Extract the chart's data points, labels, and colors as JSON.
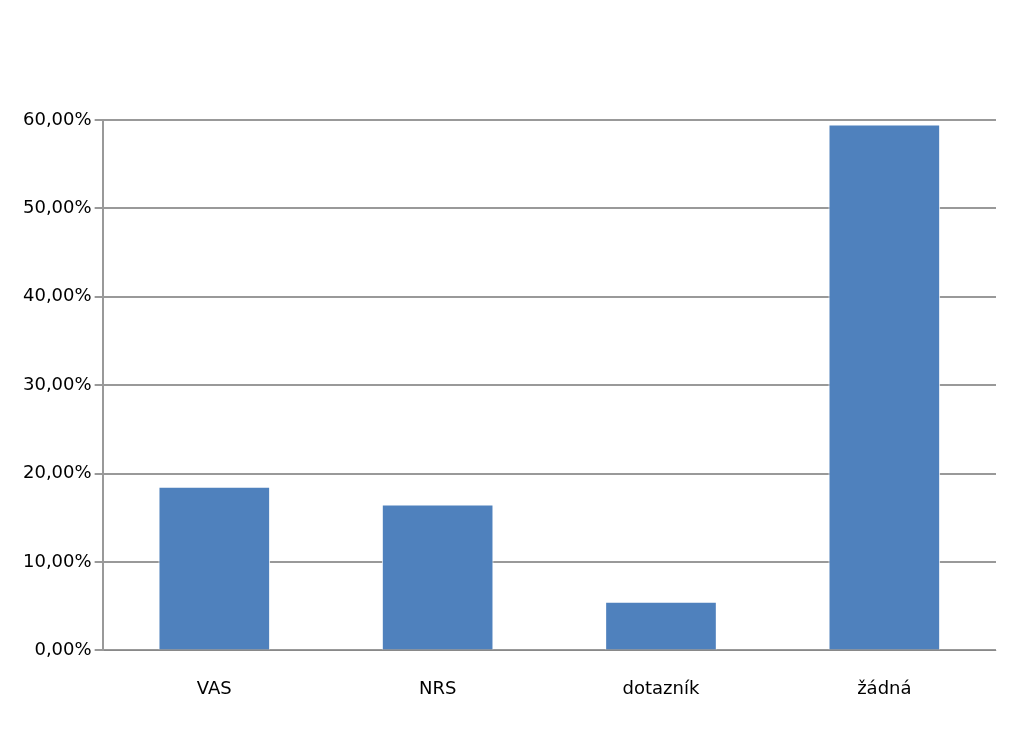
{
  "chart_data": {
    "type": "bar",
    "categories": [
      "VAS",
      "NRS",
      "dotazník",
      "žádná"
    ],
    "values": [
      18.5,
      16.5,
      5.5,
      59.5
    ],
    "color": "#4f81bd",
    "ylim": [
      0,
      60
    ],
    "yticks": [
      {
        "value": 0,
        "label": "0,00%"
      },
      {
        "value": 10,
        "label": "10,00%"
      },
      {
        "value": 20,
        "label": "20,00%"
      },
      {
        "value": 30,
        "label": "30,00%"
      },
      {
        "value": 40,
        "label": "40,00%"
      },
      {
        "value": 50,
        "label": "50,00%"
      },
      {
        "value": 60,
        "label": "60,00%"
      }
    ],
    "grid": "y",
    "legend": false
  }
}
